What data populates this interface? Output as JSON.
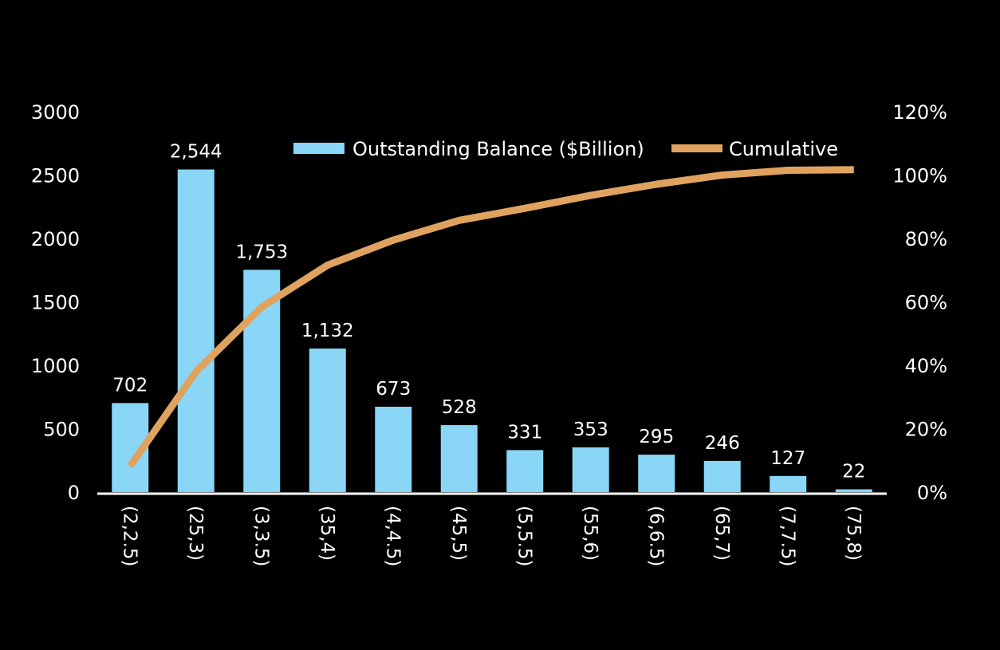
{
  "chart_data": {
    "type": "bar",
    "title": "",
    "xlabel": "",
    "ylabel": "",
    "categories": [
      "(2,2.5)",
      "(25,3)",
      "(3,3.5)",
      "(35,4)",
      "(4,4.5)",
      "(45,5)",
      "(5,5.5)",
      "(55,6)",
      "(6,6.5)",
      "(65,7)",
      "(7,7.5)",
      "(75,8)"
    ],
    "series": [
      {
        "name": "Outstanding Balance ($Billion)",
        "type": "bar",
        "axis": "left",
        "color": "#89d6f7",
        "values": [
          702,
          2544,
          1753,
          1132,
          673,
          528,
          331,
          353,
          295,
          246,
          127,
          22
        ],
        "labels": [
          "702",
          "2,544",
          "1,753",
          "1,132",
          "673",
          "528",
          "331",
          "353",
          "295",
          "246",
          "127",
          "22"
        ]
      },
      {
        "name": "Cumulative",
        "type": "line",
        "axis": "right",
        "color": "#dfa35f",
        "values": [
          8.2,
          38.0,
          58.4,
          71.6,
          79.5,
          85.7,
          89.5,
          93.6,
          97.1,
          100.0,
          101.5,
          101.7
        ]
      }
    ],
    "ylim": [
      0,
      3000
    ],
    "y_ticks": [
      "0",
      "500",
      "1000",
      "1500",
      "2000",
      "2500",
      "3000"
    ],
    "y2lim": [
      0,
      120
    ],
    "y2_ticks": [
      "0%",
      "20%",
      "40%",
      "60%",
      "80%",
      "100%",
      "120%"
    ],
    "legend": "top-center",
    "grid": false
  }
}
